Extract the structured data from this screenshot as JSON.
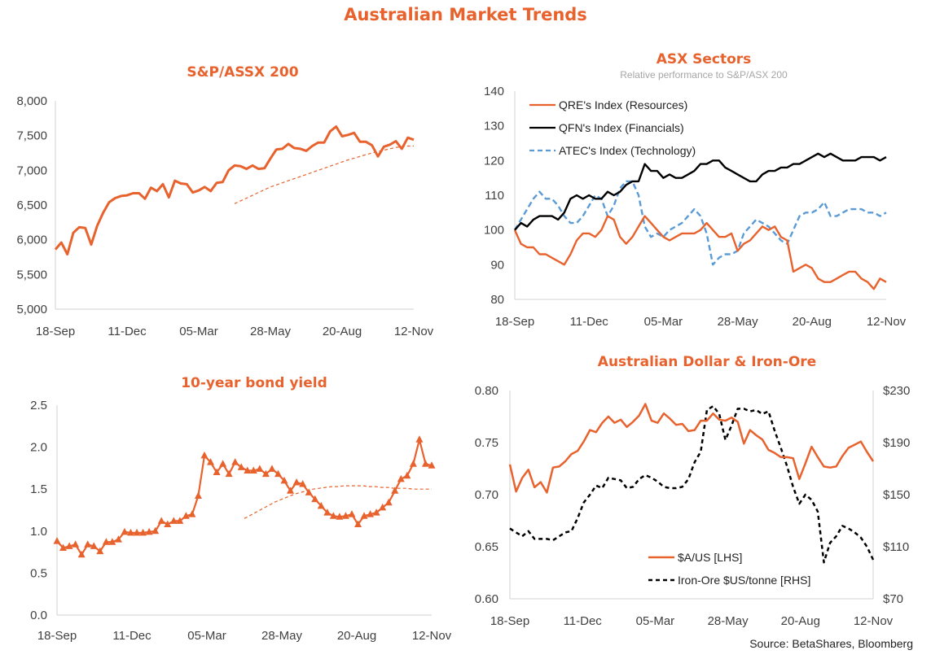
{
  "title": "Australian Market Trends",
  "source": "Source: BetaShares, Bloomberg",
  "colors": {
    "accent": "#E8622E",
    "black": "#000000",
    "blue": "#5B9BD5",
    "axis": "#D9D9D9"
  },
  "chart_data": [
    {
      "id": "asx200",
      "type": "line",
      "title": "S&P/ASSX 200",
      "x_tick_labels": [
        "18-Sep",
        "11-Dec",
        "05-Mar",
        "28-May",
        "20-Aug",
        "12-Nov"
      ],
      "y_tick_labels": [
        "5,000",
        "5,500",
        "6,000",
        "6,500",
        "7,000",
        "7,500",
        "8,000"
      ],
      "ylim": [
        5000,
        8000
      ],
      "xlim": [
        0,
        60
      ],
      "series": [
        {
          "values": [
            5860,
            5960,
            5790,
            6100,
            6180,
            6170,
            5930,
            6200,
            6390,
            6540,
            6600,
            6630,
            6640,
            6670,
            6670,
            6590,
            6750,
            6700,
            6800,
            6610,
            6850,
            6810,
            6800,
            6680,
            6710,
            6760,
            6700,
            6820,
            6830,
            7000,
            7070,
            7060,
            7020,
            7070,
            7020,
            7030,
            7170,
            7300,
            7310,
            7380,
            7320,
            7310,
            7280,
            7350,
            7400,
            7400,
            7560,
            7630,
            7490,
            7510,
            7540,
            7410,
            7410,
            7360,
            7200,
            7340,
            7370,
            7420,
            7310,
            7470,
            7440
          ]
        },
        {
          "style": "trend",
          "x_start": 30,
          "values": [
            6520,
            6560,
            6600,
            6640,
            6680,
            6720,
            6760,
            6790,
            6820,
            6850,
            6880,
            6910,
            6940,
            6970,
            7000,
            7030,
            7060,
            7090,
            7120,
            7150,
            7175,
            7200,
            7225,
            7250,
            7270,
            7290,
            7310,
            7330,
            7340,
            7350,
            7350
          ]
        }
      ]
    },
    {
      "id": "sectors",
      "type": "line",
      "title": "ASX Sectors",
      "subtitle": "Relative performance to S&P/ASX 200",
      "x_tick_labels": [
        "18-Sep",
        "11-Dec",
        "05-Mar",
        "28-May",
        "20-Aug",
        "12-Nov"
      ],
      "y_tick_labels": [
        "80",
        "90",
        "100",
        "110",
        "120",
        "130",
        "140"
      ],
      "ylim": [
        80,
        140
      ],
      "xlim": [
        0,
        60
      ],
      "series": [
        {
          "name": "QRE's Index (Resources)",
          "values": [
            100,
            96,
            95,
            95,
            93,
            93,
            92,
            91,
            90,
            93,
            97,
            99,
            99,
            98,
            100,
            104,
            103,
            98,
            96,
            98,
            101,
            104,
            102,
            100,
            98,
            97,
            98,
            99,
            99,
            99,
            100,
            102,
            100,
            98,
            98,
            99,
            94,
            96,
            97,
            99,
            101,
            100,
            101,
            98,
            97,
            88,
            89,
            90,
            89,
            86,
            85,
            85,
            86,
            87,
            88,
            88,
            86,
            85,
            83,
            86,
            85
          ]
        },
        {
          "name": "QFN's Index (Financials)",
          "values": [
            100,
            102,
            101,
            103,
            104,
            104,
            104,
            103,
            105,
            109,
            110,
            109,
            110,
            109,
            109,
            111,
            110,
            111,
            113,
            114,
            114,
            119,
            117,
            117,
            115,
            116,
            115,
            115,
            116,
            117,
            119,
            119,
            120,
            120,
            118,
            117,
            116,
            115,
            114,
            114,
            116,
            117,
            117,
            118,
            118,
            119,
            119,
            120,
            121,
            122,
            121,
            122,
            121,
            120,
            120,
            120,
            121,
            121,
            121,
            120,
            121
          ]
        },
        {
          "name": "ATEC's Index (Technology)",
          "values": [
            100,
            103,
            106,
            109,
            111,
            109,
            109,
            107,
            104,
            102,
            102,
            104,
            107,
            110,
            109,
            104,
            107,
            112,
            114,
            114,
            110,
            101,
            98,
            99,
            98,
            100,
            101,
            102,
            104,
            106,
            104,
            99,
            90,
            92,
            93,
            93,
            94,
            99,
            101,
            103,
            102,
            101,
            99,
            97,
            96,
            100,
            104,
            105,
            105,
            106,
            108,
            104,
            104,
            105,
            106,
            106,
            106,
            105,
            105,
            104,
            105
          ]
        }
      ]
    },
    {
      "id": "bond",
      "type": "line",
      "title": "10-year bond yield",
      "x_tick_labels": [
        "18-Sep",
        "11-Dec",
        "05-Mar",
        "28-May",
        "20-Aug",
        "12-Nov"
      ],
      "y_tick_labels": [
        "0.0",
        "0.5",
        "1.0",
        "1.5",
        "2.0",
        "2.5"
      ],
      "ylim": [
        0,
        2.5
      ],
      "xlim": [
        0,
        60
      ],
      "series": [
        {
          "values": [
            0.88,
            0.8,
            0.82,
            0.84,
            0.72,
            0.84,
            0.82,
            0.76,
            0.87,
            0.87,
            0.9,
            0.99,
            0.98,
            0.98,
            0.98,
            0.99,
            1.0,
            1.12,
            1.08,
            1.12,
            1.12,
            1.18,
            1.2,
            1.42,
            1.9,
            1.82,
            1.7,
            1.8,
            1.68,
            1.82,
            1.76,
            1.72,
            1.72,
            1.74,
            1.68,
            1.74,
            1.68,
            1.6,
            1.48,
            1.58,
            1.56,
            1.46,
            1.38,
            1.3,
            1.22,
            1.18,
            1.17,
            1.18,
            1.2,
            1.08,
            1.18,
            1.2,
            1.22,
            1.28,
            1.34,
            1.48,
            1.62,
            1.66,
            1.8,
            2.09,
            1.8,
            1.78
          ]
        },
        {
          "style": "trend",
          "x_start": 30,
          "values": [
            1.15,
            1.19,
            1.23,
            1.27,
            1.31,
            1.35,
            1.38,
            1.41,
            1.44,
            1.46,
            1.48,
            1.5,
            1.51,
            1.52,
            1.53,
            1.53,
            1.54,
            1.54,
            1.54,
            1.54,
            1.53,
            1.53,
            1.52,
            1.52,
            1.51,
            1.51,
            1.51,
            1.5,
            1.5,
            1.5,
            1.5
          ]
        }
      ]
    },
    {
      "id": "aud-ironore",
      "type": "line",
      "title": "Australian Dollar  & Iron-Ore",
      "x_tick_labels": [
        "18-Sep",
        "11-Dec",
        "05-Mar",
        "28-May",
        "20-Aug",
        "12-Nov"
      ],
      "y_left_tick_labels": [
        "0.60",
        "0.65",
        "0.70",
        "0.75",
        "0.80"
      ],
      "y_right_tick_labels": [
        "$70",
        "$110",
        "$150",
        "$190",
        "$230"
      ],
      "ylim_left": [
        0.6,
        0.8
      ],
      "ylim_right": [
        70,
        230
      ],
      "xlim": [
        0,
        60
      ],
      "series": [
        {
          "name": "$A/US [LHS]",
          "axis": "left",
          "values": [
            0.729,
            0.703,
            0.716,
            0.724,
            0.707,
            0.712,
            0.702,
            0.726,
            0.727,
            0.732,
            0.739,
            0.742,
            0.751,
            0.762,
            0.76,
            0.769,
            0.775,
            0.769,
            0.772,
            0.765,
            0.77,
            0.776,
            0.787,
            0.771,
            0.769,
            0.778,
            0.773,
            0.767,
            0.768,
            0.761,
            0.762,
            0.771,
            0.771,
            0.778,
            0.772,
            0.771,
            0.774,
            0.77,
            0.749,
            0.762,
            0.757,
            0.753,
            0.743,
            0.74,
            0.736,
            0.736,
            0.735,
            0.715,
            0.73,
            0.746,
            0.736,
            0.727,
            0.726,
            0.727,
            0.737,
            0.745,
            0.748,
            0.751,
            0.741,
            0.732
          ]
        },
        {
          "name": "Iron-Ore $US/tonne [RHS]",
          "axis": "right",
          "values": [
            124,
            121,
            118,
            122,
            116,
            116,
            116,
            115,
            118,
            121,
            122,
            132,
            144,
            150,
            157,
            155,
            163,
            162,
            161,
            155,
            156,
            162,
            165,
            163,
            160,
            156,
            155,
            155,
            156,
            162,
            175,
            183,
            215,
            218,
            212,
            192,
            203,
            216,
            216,
            214,
            215,
            212,
            214,
            199,
            186,
            172,
            156,
            143,
            150,
            146,
            137,
            98,
            113,
            118,
            126,
            124,
            121,
            117,
            110,
            100
          ]
        }
      ]
    }
  ]
}
